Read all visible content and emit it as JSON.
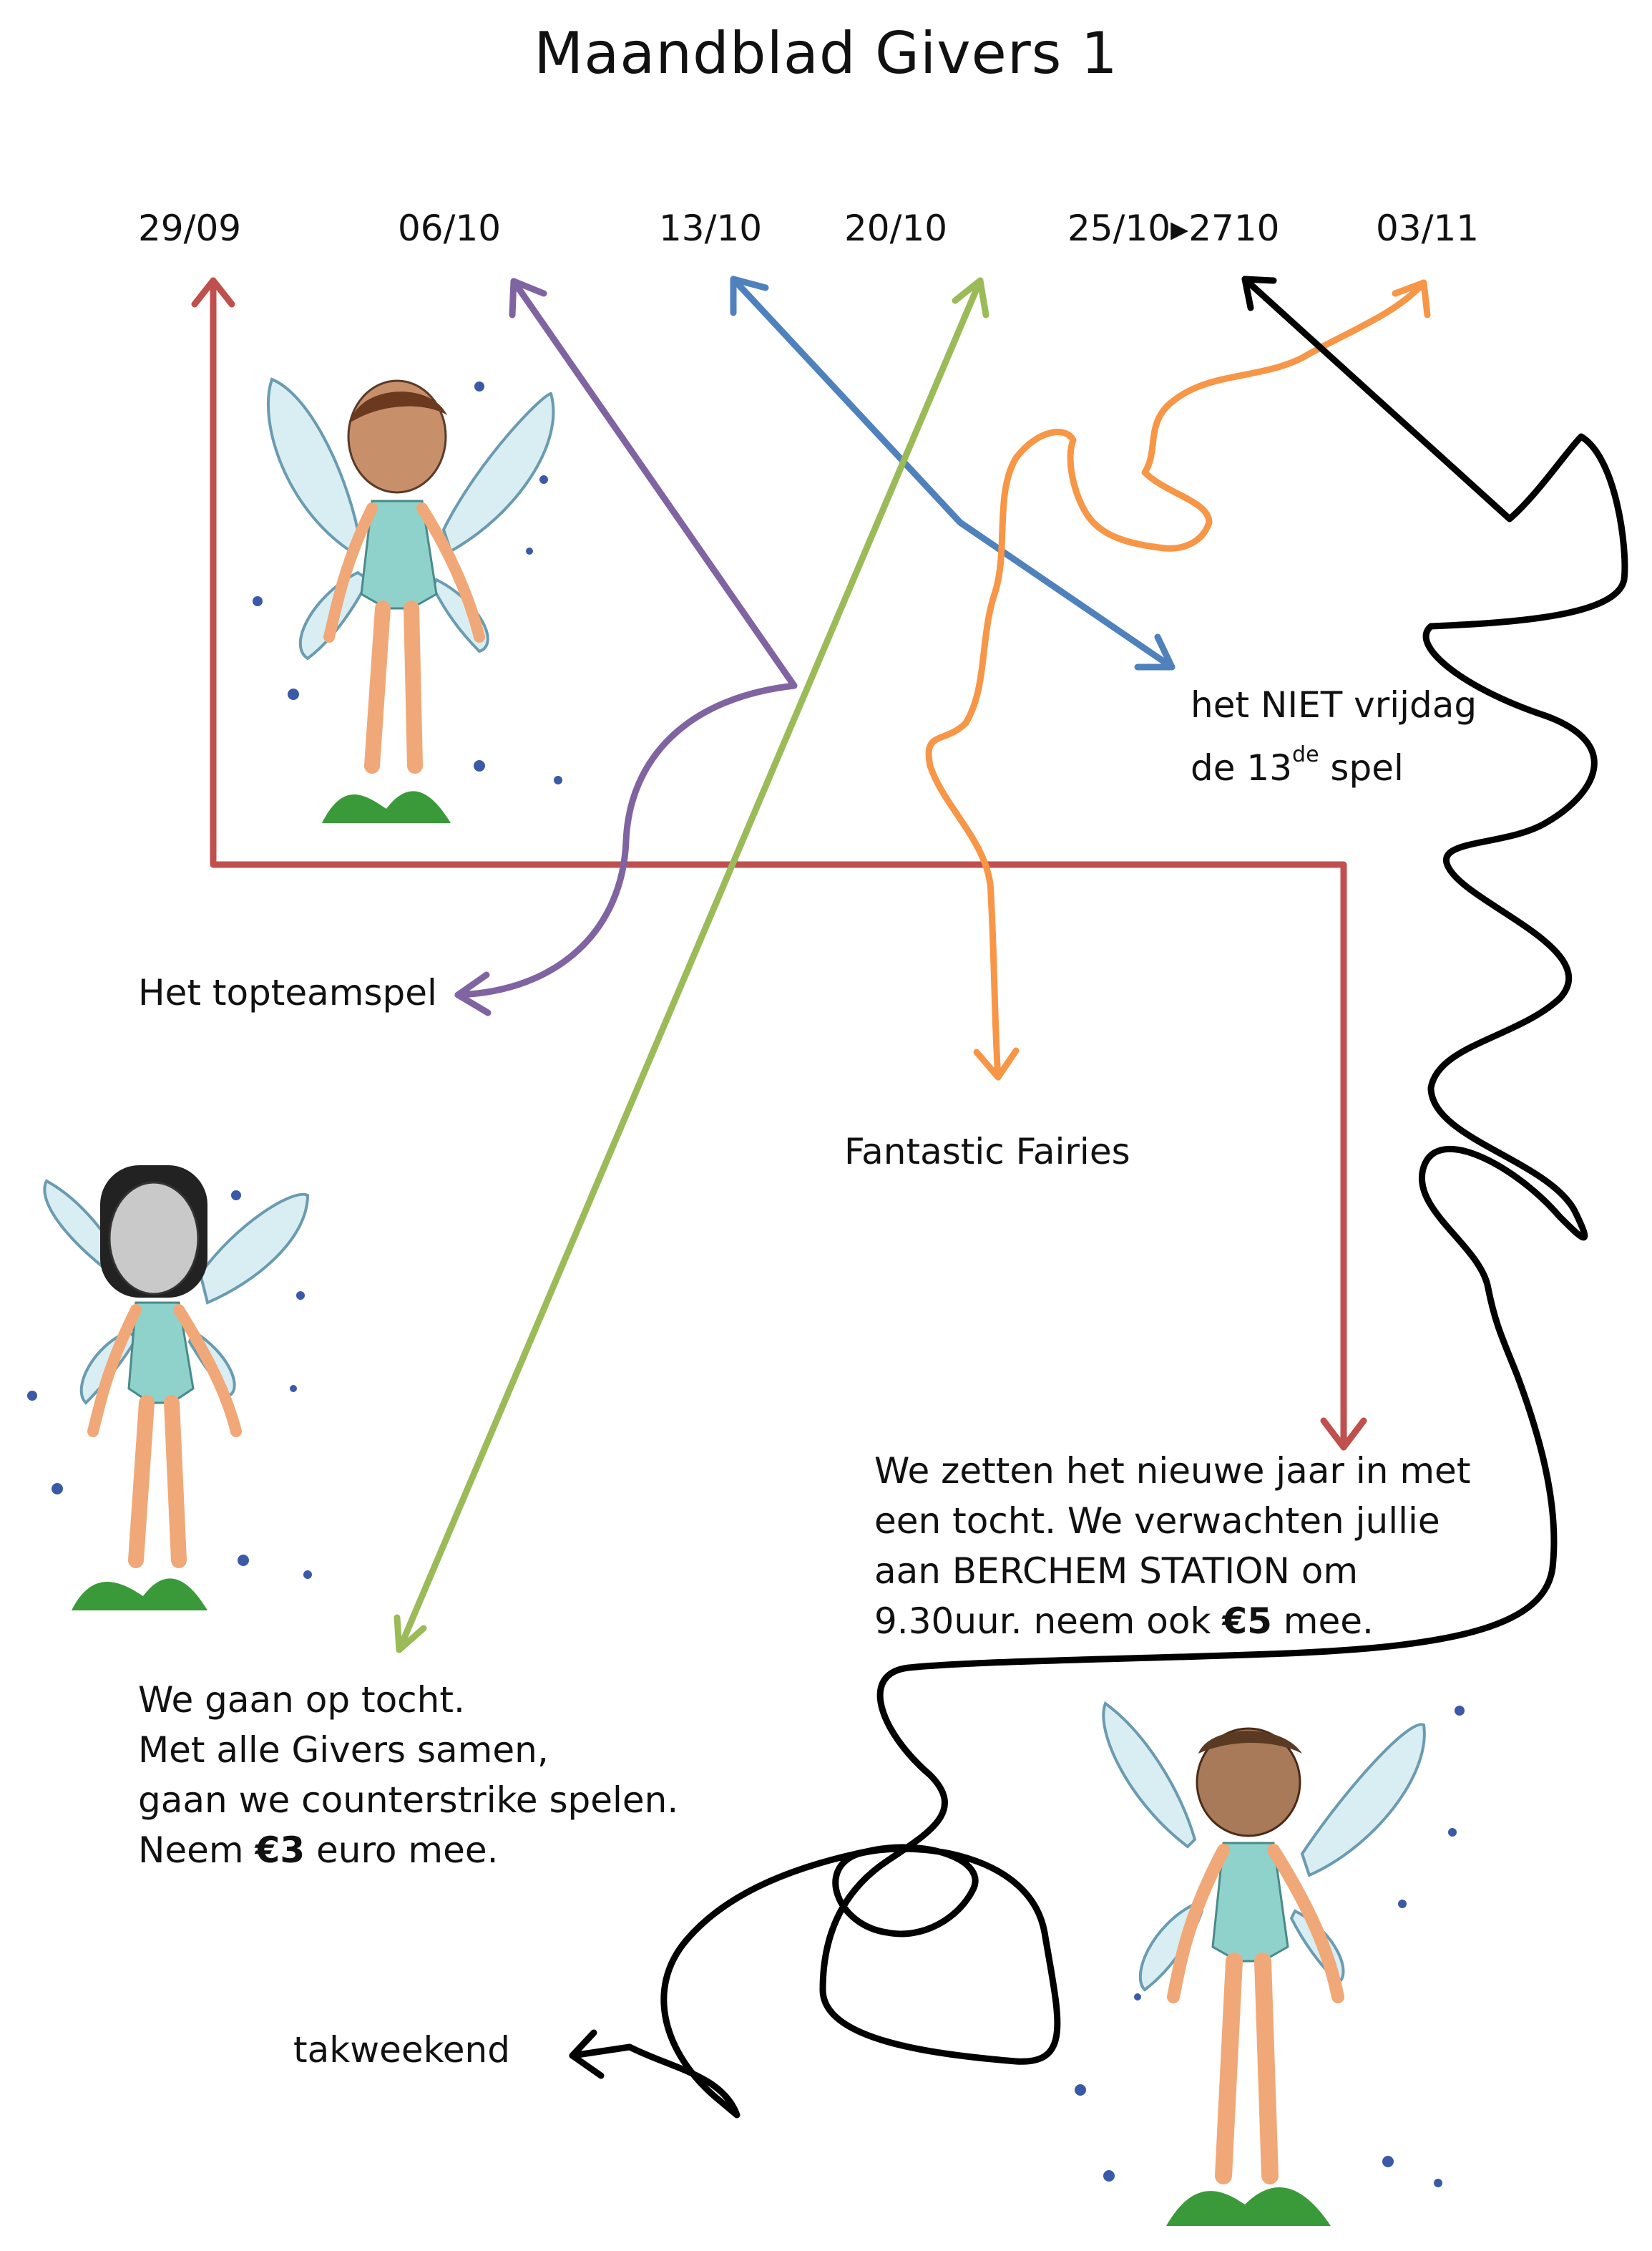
{
  "title": "Maandblad Givers 1",
  "dates": [
    "29/09",
    "06/10",
    "13/10",
    "20/10",
    "25/10▸2710",
    "03/11"
  ],
  "labels": {
    "niet_vrijdag_line1": "het NIET vrijdag",
    "niet_vrijdag_line2_pre": "de 13",
    "niet_vrijdag_sup": "de",
    "niet_vrijdag_line2_post": " spel",
    "topteamspel": "Het topteamspel",
    "fantastic_fairies": "Fantastic Fairies",
    "takweekend": "takweekend"
  },
  "nieuwjaar": {
    "line1": "We zetten het nieuwe jaar in met",
    "line2": "een tocht. We verwachten jullie",
    "line3": "aan BERCHEM STATION om",
    "line4_pre": "9.30uur. neem ook ",
    "line4_bold": "€5",
    "line4_post": " mee."
  },
  "counterstrike": {
    "line1": "We gaan op tocht.",
    "line2": "Met alle Givers samen,",
    "line3": "gaan we counterstrike spelen.",
    "line4_pre": "Neem ",
    "line4_bold": "€3",
    "line4_post": " euro mee."
  },
  "colors": {
    "red": "#c0504d",
    "purple": "#8064a2",
    "blue": "#4f81bd",
    "green": "#9bbb59",
    "orange": "#f79646",
    "black": "#000000"
  }
}
